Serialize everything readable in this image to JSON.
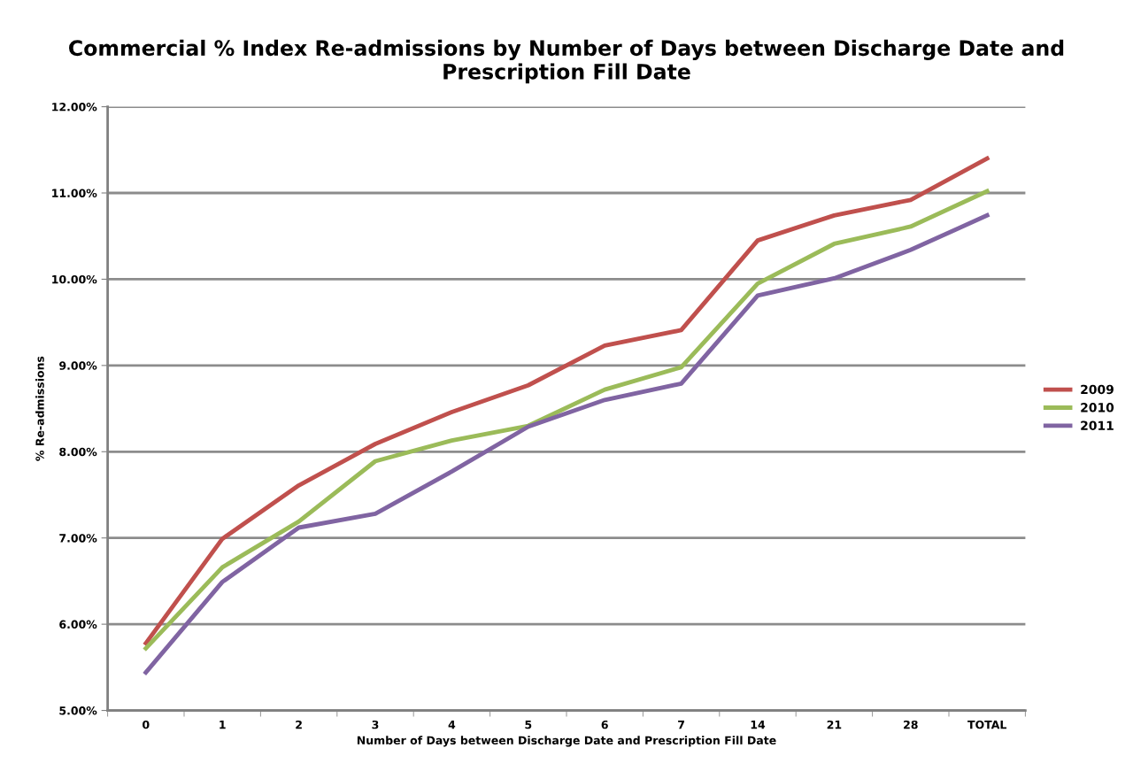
{
  "chart_data": {
    "type": "line",
    "title": "Commercial % Index Re-admissions by Number of Days between Discharge Date and Prescription Fill Date",
    "xlabel": "Number of Days between Discharge Date and Prescription Fill Date",
    "ylabel": "% Re-admissions",
    "categories": [
      "0",
      "1",
      "2",
      "3",
      "4",
      "5",
      "6",
      "7",
      "14",
      "21",
      "28",
      "TOTAL"
    ],
    "series": [
      {
        "name": "2009",
        "color": "#c0504d",
        "values": [
          5.78,
          6.99,
          7.61,
          8.09,
          8.46,
          8.77,
          9.23,
          9.41,
          10.45,
          10.74,
          10.92,
          11.4
        ]
      },
      {
        "name": "2010",
        "color": "#9bbb59",
        "values": [
          5.72,
          6.66,
          7.19,
          7.89,
          8.13,
          8.3,
          8.72,
          8.98,
          9.95,
          10.41,
          10.61,
          11.02
        ]
      },
      {
        "name": "2011",
        "color": "#8064a2",
        "values": [
          5.44,
          6.49,
          7.12,
          7.28,
          7.77,
          8.29,
          8.6,
          8.79,
          9.81,
          10.01,
          10.34,
          10.74
        ]
      }
    ],
    "ylim": [
      5,
      12
    ],
    "yticks": [
      {
        "value": 5,
        "label": "5.00%"
      },
      {
        "value": 6,
        "label": "6.00%"
      },
      {
        "value": 7,
        "label": "7.00%"
      },
      {
        "value": 8,
        "label": "8.00%"
      },
      {
        "value": 9,
        "label": "9.00%"
      },
      {
        "value": 10,
        "label": "10.00%"
      },
      {
        "value": 11,
        "label": "11.00%"
      },
      {
        "value": 12,
        "label": "12.00%"
      }
    ],
    "grid": "y",
    "legend": "right",
    "marker": "none",
    "line_style": "solid"
  }
}
